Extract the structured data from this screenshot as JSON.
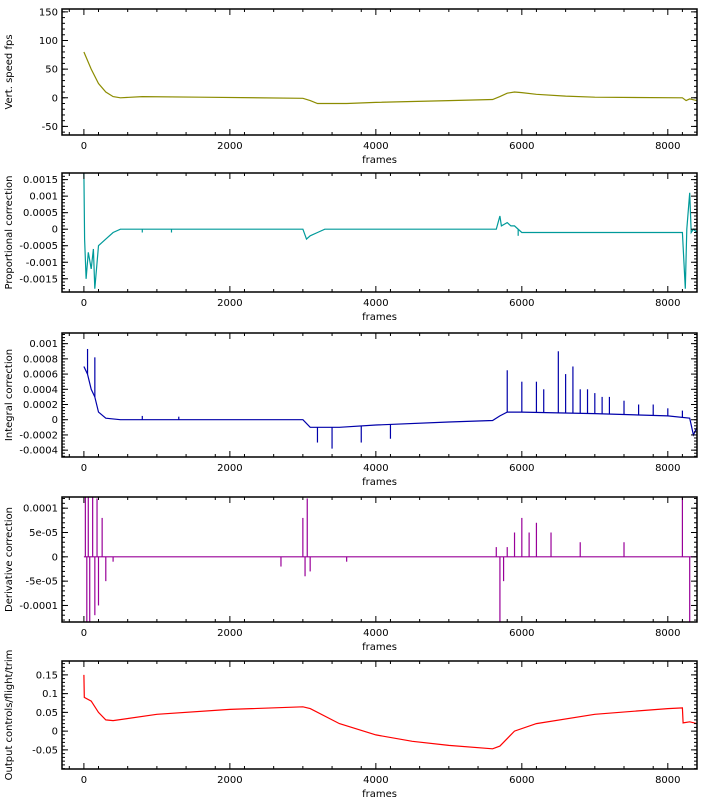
{
  "chart_data": [
    {
      "type": "line",
      "title": "",
      "xlabel": "frames",
      "ylabel": "Vert. speed fps",
      "color": "#8c8c00",
      "xlim": [
        -300,
        8400
      ],
      "ylim": [
        -65,
        155
      ],
      "xticks": [
        0,
        2000,
        4000,
        6000,
        8000
      ],
      "yticks": [
        150,
        100,
        50,
        0,
        -50
      ],
      "ytick_labels": [
        "150",
        "100",
        "50",
        "0",
        "-50"
      ],
      "x": [
        0,
        100,
        200,
        300,
        400,
        500,
        800,
        1600,
        3000,
        3100,
        3200,
        3600,
        4000,
        5000,
        5600,
        5700,
        5800,
        5900,
        6000,
        6200,
        6600,
        7000,
        8200,
        8250,
        8300,
        8400
      ],
      "y": [
        80,
        50,
        25,
        10,
        2,
        0,
        2,
        1,
        -1,
        -5,
        -10,
        -10,
        -8,
        -5,
        -3,
        2,
        8,
        10,
        9,
        6,
        3,
        1,
        0,
        -5,
        -2,
        -5
      ],
      "spikes": []
    },
    {
      "type": "line",
      "title": "",
      "xlabel": "frames",
      "ylabel": "Proportional correction",
      "color": "#009a9a",
      "xlim": [
        -300,
        8400
      ],
      "ylim": [
        -0.0019,
        0.0017
      ],
      "xticks": [
        0,
        2000,
        4000,
        6000,
        8000
      ],
      "yticks": [
        0.0015,
        0.001,
        0.0005,
        0,
        -0.0005,
        -0.001,
        -0.0015
      ],
      "ytick_labels": [
        "0.0015",
        "0.001",
        "0.0005",
        "0",
        "-0.0005",
        "-0.001",
        "-0.0015"
      ],
      "x": [
        0,
        10,
        30,
        60,
        100,
        130,
        150,
        200,
        300,
        400,
        500,
        3000,
        3050,
        3100,
        3200,
        3300,
        5650,
        5700,
        5720,
        5800,
        5850,
        5900,
        6000,
        8200,
        8240,
        8260,
        8300,
        8320,
        8350,
        8400
      ],
      "y": [
        0.0017,
        -0.0003,
        -0.0015,
        -0.0007,
        -0.0012,
        -0.0006,
        -0.0018,
        -0.0005,
        -0.0003,
        -0.0001,
        0,
        0,
        -0.0003,
        -0.0002,
        -0.0001,
        0,
        0,
        0.0004,
        0.0001,
        0.0002,
        0.0001,
        0.0001,
        -0.0001,
        -0.0001,
        -0.0018,
        0,
        0.0011,
        -0.0001,
        0,
        -0.0001
      ],
      "spikes": [
        [
          800,
          -0.0001
        ],
        [
          1200,
          -0.0001
        ],
        [
          5950,
          -0.0002
        ],
        [
          6300,
          -0.0001
        ],
        [
          6600,
          -0.0001
        ],
        [
          7000,
          -0.0001
        ]
      ]
    },
    {
      "type": "line",
      "title": "",
      "xlabel": "frames",
      "ylabel": "Integral correction",
      "color": "#0000aa",
      "xlim": [
        -300,
        8400
      ],
      "ylim": [
        -0.00049,
        0.00114
      ],
      "xticks": [
        0,
        2000,
        4000,
        6000,
        8000
      ],
      "yticks": [
        0.001,
        0.0008,
        0.0006,
        0.0004,
        0.0002,
        0,
        -0.0002,
        -0.0004
      ],
      "ytick_labels": [
        "0.001",
        "0.0008",
        "0.0006",
        "0.0004",
        "0.0002",
        "0",
        "-0.0002",
        "-0.0004"
      ],
      "x": [
        0,
        50,
        100,
        150,
        200,
        300,
        500,
        3000,
        3100,
        3500,
        4000,
        5000,
        5600,
        5700,
        5800,
        6000,
        7000,
        8000,
        8300,
        8350,
        8400
      ],
      "y": [
        0.0007,
        0.0006,
        0.0004,
        0.0003,
        0.0001,
        2e-05,
        0,
        0,
        -0.0001,
        -0.0001,
        -7e-05,
        -3e-05,
        -1e-05,
        5e-05,
        0.0001,
        0.0001,
        8e-05,
        5e-05,
        2e-05,
        -0.0002,
        -0.0001
      ],
      "spikes": [
        [
          50,
          0.00093
        ],
        [
          150,
          0.00082
        ],
        [
          800,
          5e-05
        ],
        [
          1300,
          4e-05
        ],
        [
          3200,
          -0.0003
        ],
        [
          3400,
          -0.00038
        ],
        [
          3800,
          -0.0003
        ],
        [
          4200,
          -0.00025
        ],
        [
          5800,
          0.00065
        ],
        [
          6000,
          0.0005
        ],
        [
          6200,
          0.0005
        ],
        [
          6300,
          0.0004
        ],
        [
          6500,
          0.0009
        ],
        [
          6600,
          0.0006
        ],
        [
          6700,
          0.0007
        ],
        [
          6800,
          0.0004
        ],
        [
          6900,
          0.0004
        ],
        [
          7000,
          0.00035
        ],
        [
          7100,
          0.0003
        ],
        [
          7200,
          0.0003
        ],
        [
          7400,
          0.00025
        ],
        [
          7600,
          0.0002
        ],
        [
          7800,
          0.0002
        ],
        [
          8000,
          0.00015
        ],
        [
          8200,
          0.00012
        ]
      ]
    },
    {
      "type": "line",
      "title": "",
      "xlabel": "frames",
      "ylabel": "Derivative correction",
      "color": "#990099",
      "xlim": [
        -300,
        8400
      ],
      "ylim": [
        -0.000134,
        0.000123
      ],
      "xticks": [
        0,
        2000,
        4000,
        6000,
        8000
      ],
      "yticks": [
        0.0001,
        5e-05,
        0,
        -5e-05,
        -0.0001
      ],
      "ytick_labels": [
        "0.0001",
        "5e-05",
        "0",
        "-5e-05",
        "-0.0001"
      ],
      "x": [
        0,
        8400
      ],
      "y": [
        0,
        0
      ],
      "spikes": [
        [
          20,
          0.00013
        ],
        [
          40,
          -0.00014
        ],
        [
          60,
          0.00013
        ],
        [
          80,
          -0.00014
        ],
        [
          120,
          0.00013
        ],
        [
          150,
          -0.00012
        ],
        [
          180,
          0.00012
        ],
        [
          200,
          -0.0001
        ],
        [
          250,
          8e-05
        ],
        [
          300,
          -5e-05
        ],
        [
          400,
          -1e-05
        ],
        [
          2700,
          -2e-05
        ],
        [
          3000,
          8e-05
        ],
        [
          3030,
          -4e-05
        ],
        [
          3060,
          0.00012
        ],
        [
          3100,
          -3e-05
        ],
        [
          3600,
          -1e-05
        ],
        [
          5650,
          2e-05
        ],
        [
          5700,
          -0.00014
        ],
        [
          5750,
          -5e-05
        ],
        [
          5800,
          2e-05
        ],
        [
          5900,
          5e-05
        ],
        [
          6000,
          8e-05
        ],
        [
          6100,
          5e-05
        ],
        [
          6200,
          7e-05
        ],
        [
          6400,
          5e-05
        ],
        [
          6800,
          3e-05
        ],
        [
          7400,
          3e-05
        ],
        [
          8200,
          0.00013
        ],
        [
          8300,
          -0.00014
        ],
        [
          8400,
          0.00013
        ]
      ]
    },
    {
      "type": "line",
      "title": "",
      "xlabel": "frames",
      "ylabel": "Output controls/flight/trim",
      "color": "#ff0000",
      "xlim": [
        -300,
        8400
      ],
      "ylim": [
        -0.101,
        0.187
      ],
      "xticks": [
        0,
        2000,
        4000,
        6000,
        8000
      ],
      "yticks": [
        0.15,
        0.1,
        0.05,
        0,
        -0.05
      ],
      "ytick_labels": [
        "0.15",
        "0.1",
        "0.05",
        "0",
        "-0.05"
      ],
      "x": [
        0,
        5,
        100,
        200,
        300,
        400,
        1000,
        2000,
        3000,
        3100,
        3500,
        4000,
        4500,
        5000,
        5600,
        5700,
        5900,
        6200,
        7000,
        8000,
        8200,
        8210,
        8300,
        8400
      ],
      "y": [
        0.15,
        0.09,
        0.08,
        0.05,
        0.03,
        0.028,
        0.045,
        0.058,
        0.065,
        0.06,
        0.02,
        -0.01,
        -0.027,
        -0.038,
        -0.047,
        -0.04,
        0,
        0.02,
        0.045,
        0.06,
        0.062,
        0.022,
        0.025,
        0.02
      ],
      "spikes": []
    }
  ]
}
